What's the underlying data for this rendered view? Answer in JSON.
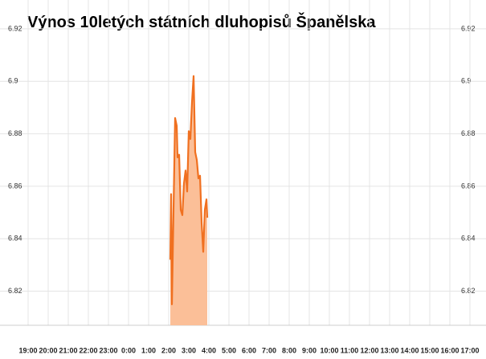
{
  "chart_data": {
    "type": "area",
    "title": "Výnos 10letých státních dluhopisů Španělska",
    "line_color": "#f07020",
    "fill_color": "#fbbf98",
    "grid": true,
    "xlim": [
      -0.2,
      22.2
    ],
    "xticks": [
      {
        "value": 0,
        "label": "19:00"
      },
      {
        "value": 1,
        "label": "20:00"
      },
      {
        "value": 2,
        "label": "21:00"
      },
      {
        "value": 3,
        "label": "22:00"
      },
      {
        "value": 4,
        "label": "23:00"
      },
      {
        "value": 5,
        "label": "0:00"
      },
      {
        "value": 6,
        "label": "1:00"
      },
      {
        "value": 7,
        "label": "2:00"
      },
      {
        "value": 8,
        "label": "3:00"
      },
      {
        "value": 9,
        "label": "4:00"
      },
      {
        "value": 10,
        "label": "5:00"
      },
      {
        "value": 11,
        "label": "6:00"
      },
      {
        "value": 12,
        "label": "7:00"
      },
      {
        "value": 13,
        "label": "8:00"
      },
      {
        "value": 14,
        "label": "9:00"
      },
      {
        "value": 15,
        "label": "10:00"
      },
      {
        "value": 16,
        "label": "11:00"
      },
      {
        "value": 17,
        "label": "12:00"
      },
      {
        "value": 18,
        "label": "13:00"
      },
      {
        "value": 19,
        "label": "14:00"
      },
      {
        "value": 20,
        "label": "15:00"
      },
      {
        "value": 21,
        "label": "16:00"
      },
      {
        "value": 22,
        "label": "17:00"
      }
    ],
    "ylim": [
      6.807,
      6.931
    ],
    "yticks": [
      6.82,
      6.84,
      6.86,
      6.88,
      6.9,
      6.92
    ],
    "x": [
      7.08,
      7.12,
      7.16,
      7.24,
      7.32,
      7.4,
      7.44,
      7.52,
      7.6,
      7.68,
      7.76,
      7.84,
      7.92,
      8.0,
      8.08,
      8.16,
      8.24,
      8.32,
      8.4,
      8.48,
      8.56,
      8.64,
      8.72,
      8.8,
      8.88,
      8.92
    ],
    "values": [
      6.832,
      6.857,
      6.815,
      6.851,
      6.886,
      6.883,
      6.871,
      6.872,
      6.851,
      6.849,
      6.861,
      6.866,
      6.858,
      6.881,
      6.878,
      6.892,
      6.902,
      6.873,
      6.87,
      6.863,
      6.864,
      6.846,
      6.835,
      6.851,
      6.855,
      6.848
    ]
  }
}
